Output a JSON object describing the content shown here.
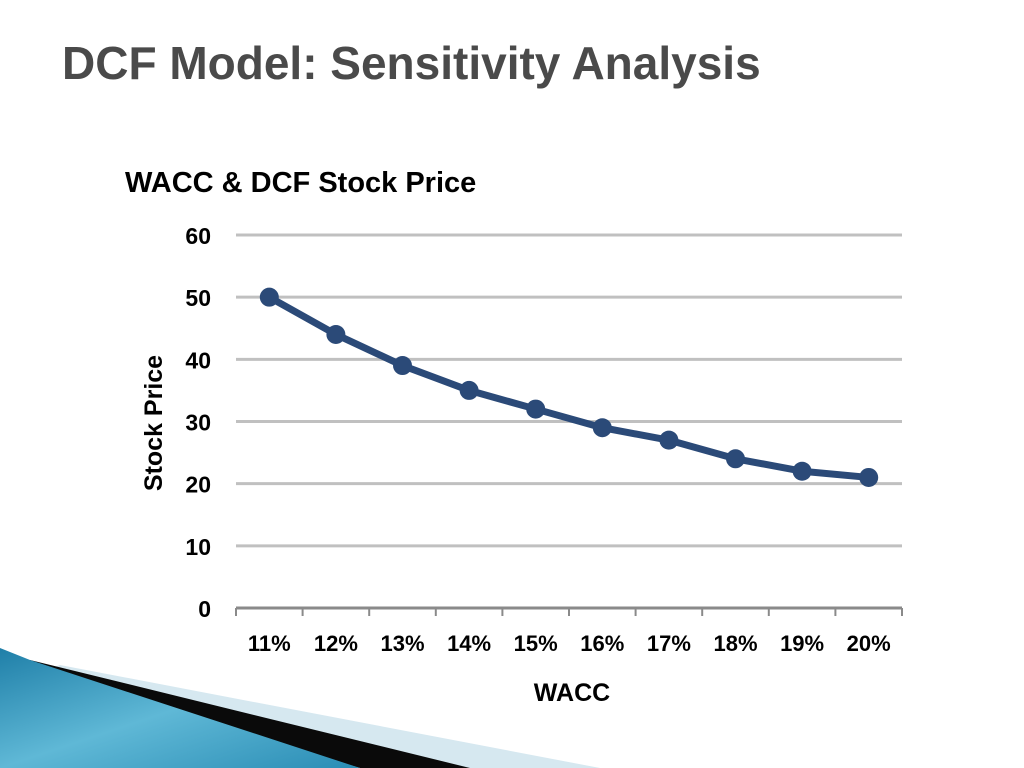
{
  "slide": {
    "title": "DCF Model: Sensitivity Analysis"
  },
  "colors": {
    "title_text": "#4a4a4a",
    "series_line": "#2b4a78",
    "gridline": "#c0c0c0",
    "decor_teal": "#3a9bc0",
    "decor_light": "#d6e8f0",
    "decor_dark": "#0a0a0a"
  },
  "chart_data": {
    "type": "line",
    "title": "WACC & DCF Stock Price",
    "xlabel": "WACC",
    "ylabel": "Stock Price",
    "categories": [
      "11%",
      "12%",
      "13%",
      "14%",
      "15%",
      "16%",
      "17%",
      "18%",
      "19%",
      "20%"
    ],
    "series": [
      {
        "values": [
          50,
          44,
          39,
          35,
          32,
          29,
          27,
          24,
          22,
          21
        ]
      }
    ],
    "ylim": [
      0,
      60
    ],
    "yticks": [
      "0",
      "10",
      "20",
      "30",
      "40",
      "50",
      "60"
    ],
    "grid": true,
    "markers": true,
    "legend": "none"
  }
}
